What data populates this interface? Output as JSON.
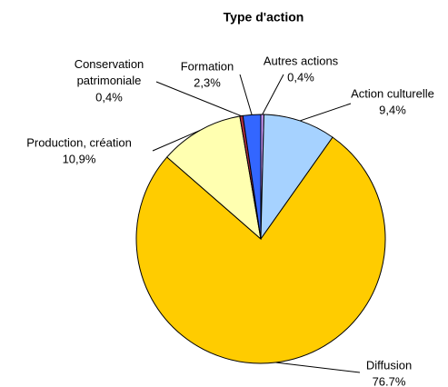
{
  "chart_data": {
    "type": "pie",
    "title": "Type d'action",
    "categories": [
      "Autres actions",
      "Action culturelle",
      "Diffusion",
      "Production, création",
      "Conservation patrimoniale",
      "Formation"
    ],
    "values": [
      0.4,
      9.4,
      76.7,
      10.9,
      0.4,
      2.3
    ],
    "value_labels": [
      "0,4%",
      "9,4%",
      "76.7%",
      "10,9%",
      "0,4%",
      "2,3%"
    ],
    "colors": [
      "#cc99ff",
      "#a6d2ff",
      "#ffcc00",
      "#ffffb0",
      "#b03040",
      "#3366ff"
    ]
  }
}
